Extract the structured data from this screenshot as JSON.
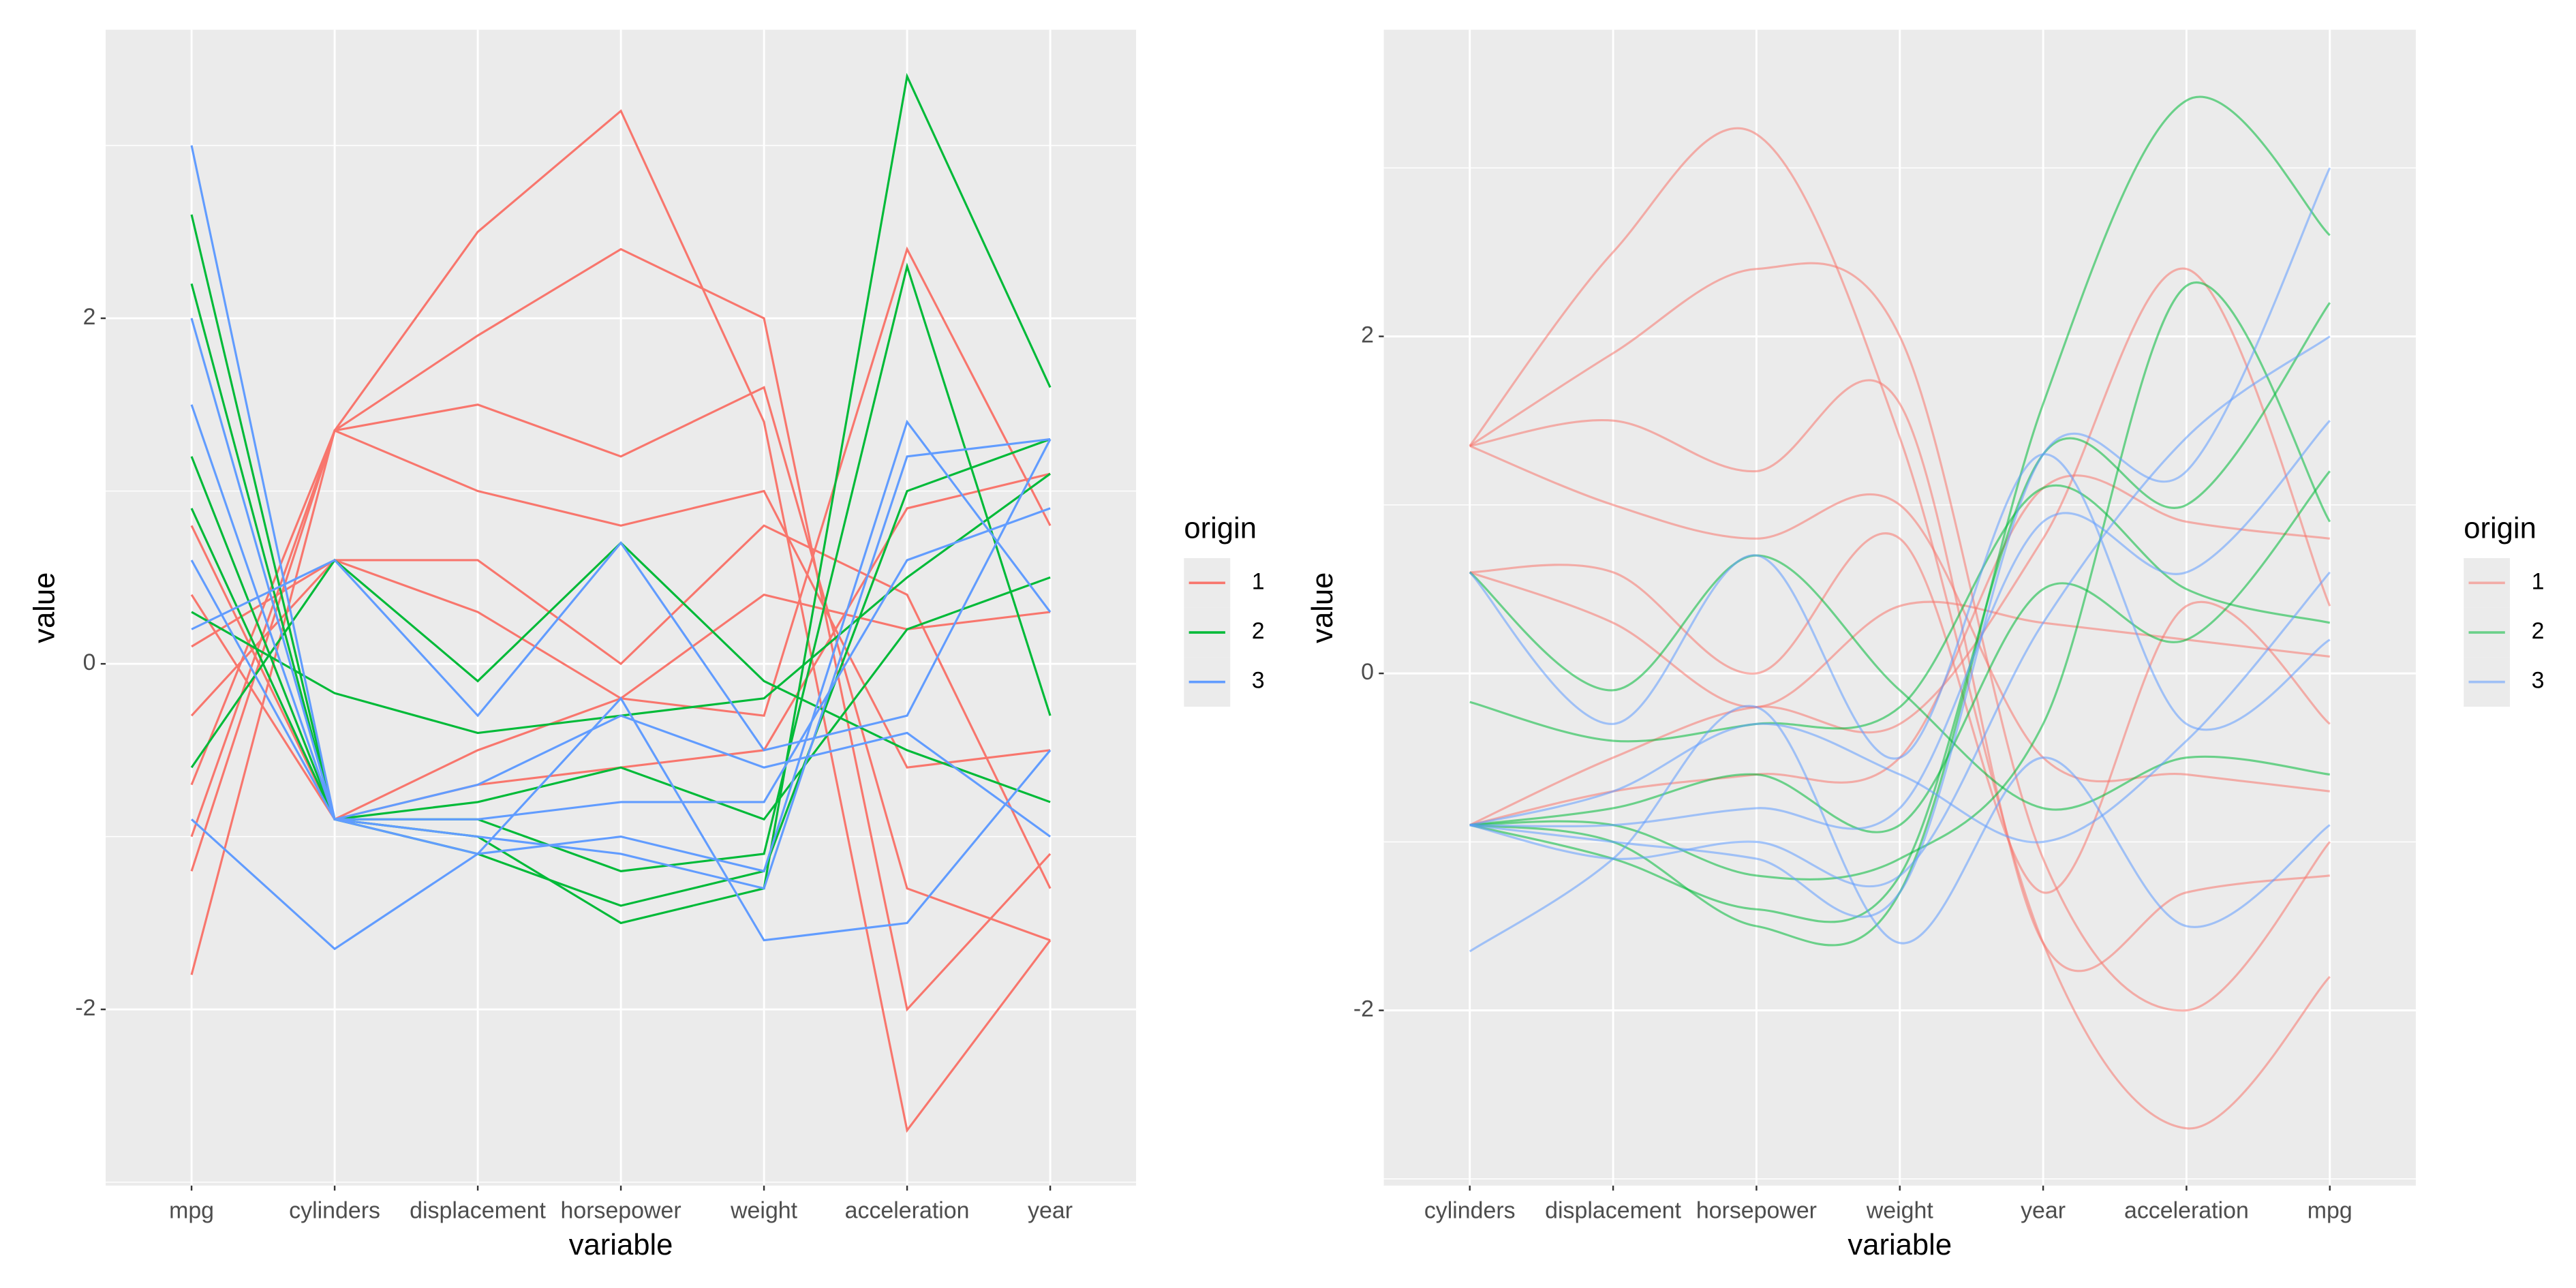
{
  "chart_data": [
    {
      "type": "parallel",
      "smooth": false,
      "alpha": 1,
      "x_label": "variable",
      "y_label": "value",
      "categories": [
        "mpg",
        "cylinders",
        "displacement",
        "horsepower",
        "weight",
        "acceleration",
        "year"
      ],
      "ylim": [
        -3.02,
        3.67
      ],
      "yticks": [
        -2,
        0,
        2
      ],
      "grid": true,
      "legend_title": "origin",
      "series": [
        {
          "name": "1",
          "color": "#F8766D",
          "lines": [
            [
              -1.2,
              1.35,
              1.5,
              1.2,
              1.6,
              -1.3,
              -1.6
            ],
            [
              -1.8,
              1.35,
              2.5,
              3.2,
              1.4,
              -2.7,
              -1.6
            ],
            [
              -0.7,
              1.35,
              1.0,
              0.8,
              1.0,
              -0.6,
              -0.5
            ],
            [
              0.1,
              0.6,
              0.3,
              -0.2,
              0.4,
              0.2,
              0.3
            ],
            [
              -0.3,
              0.6,
              0.6,
              0.0,
              0.8,
              0.4,
              -1.3
            ],
            [
              0.8,
              -0.9,
              -0.7,
              -0.6,
              -0.5,
              0.9,
              1.1
            ],
            [
              -1.0,
              1.35,
              1.9,
              2.4,
              2.0,
              -2.0,
              -1.1
            ],
            [
              0.4,
              -0.9,
              -0.5,
              -0.2,
              -0.3,
              2.4,
              0.8
            ]
          ]
        },
        {
          "name": "2",
          "color": "#00BA38",
          "lines": [
            [
              2.6,
              -0.9,
              -1.0,
              -1.5,
              -1.3,
              3.4,
              1.6
            ],
            [
              1.2,
              -0.9,
              -0.8,
              -0.6,
              -0.9,
              0.2,
              0.5
            ],
            [
              0.3,
              -0.17,
              -0.4,
              -0.3,
              -0.2,
              0.5,
              1.1
            ],
            [
              -0.6,
              0.6,
              -0.1,
              0.7,
              -0.1,
              -0.5,
              -0.8
            ],
            [
              0.9,
              -0.9,
              -0.9,
              -1.2,
              -1.1,
              2.3,
              -0.3
            ],
            [
              2.2,
              -0.9,
              -1.1,
              -1.4,
              -1.2,
              1.0,
              1.3
            ]
          ]
        },
        {
          "name": "3",
          "color": "#619CFF",
          "lines": [
            [
              3.0,
              -0.9,
              -1.0,
              -1.1,
              -1.3,
              1.2,
              1.3
            ],
            [
              -0.9,
              -1.65,
              -1.1,
              -0.2,
              -1.6,
              -1.5,
              -0.5
            ],
            [
              1.5,
              -0.9,
              -0.9,
              -0.8,
              -0.8,
              0.6,
              0.9
            ],
            [
              0.2,
              0.6,
              -0.3,
              0.7,
              -0.5,
              -0.3,
              1.3
            ],
            [
              2.0,
              -0.9,
              -1.1,
              -1.0,
              -1.2,
              1.4,
              0.3
            ],
            [
              0.6,
              -0.9,
              -0.7,
              -0.3,
              -0.6,
              -0.4,
              -1.0
            ]
          ]
        }
      ]
    },
    {
      "type": "parallel",
      "smooth": true,
      "alpha": 0.55,
      "x_label": "variable",
      "y_label": "value",
      "categories": [
        "cylinders",
        "displacement",
        "horsepower",
        "weight",
        "year",
        "acceleration",
        "mpg"
      ],
      "ylim": [
        -3.04,
        3.82
      ],
      "yticks": [
        -2,
        0,
        2
      ],
      "grid": true,
      "legend_title": "origin",
      "series": [
        {
          "name": "1",
          "color": "#F8766D",
          "lines": [
            [
              1.35,
              1.5,
              1.2,
              1.6,
              -1.6,
              -1.3,
              -1.2
            ],
            [
              1.35,
              2.5,
              3.2,
              1.4,
              -1.6,
              -2.7,
              -1.8
            ],
            [
              1.35,
              1.0,
              0.8,
              1.0,
              -0.5,
              -0.6,
              -0.7
            ],
            [
              0.6,
              0.3,
              -0.2,
              0.4,
              0.3,
              0.2,
              0.1
            ],
            [
              0.6,
              0.6,
              0.0,
              0.8,
              -1.3,
              0.4,
              -0.3
            ],
            [
              -0.9,
              -0.7,
              -0.6,
              -0.5,
              1.1,
              0.9,
              0.8
            ],
            [
              1.35,
              1.9,
              2.4,
              2.0,
              -1.1,
              -2.0,
              -1.0
            ],
            [
              -0.9,
              -0.5,
              -0.2,
              -0.3,
              0.8,
              2.4,
              0.4
            ]
          ]
        },
        {
          "name": "2",
          "color": "#00BA38",
          "lines": [
            [
              -0.9,
              -1.0,
              -1.5,
              -1.3,
              1.6,
              3.4,
              2.6
            ],
            [
              -0.9,
              -0.8,
              -0.6,
              -0.9,
              0.5,
              0.2,
              1.2
            ],
            [
              -0.17,
              -0.4,
              -0.3,
              -0.2,
              1.1,
              0.5,
              0.3
            ],
            [
              0.6,
              -0.1,
              0.7,
              -0.1,
              -0.8,
              -0.5,
              -0.6
            ],
            [
              -0.9,
              -0.9,
              -1.2,
              -1.1,
              -0.3,
              2.3,
              0.9
            ],
            [
              -0.9,
              -1.1,
              -1.4,
              -1.2,
              1.3,
              1.0,
              2.2
            ]
          ]
        },
        {
          "name": "3",
          "color": "#619CFF",
          "lines": [
            [
              -0.9,
              -1.0,
              -1.1,
              -1.3,
              1.3,
              1.2,
              3.0
            ],
            [
              -1.65,
              -1.1,
              -0.2,
              -1.6,
              -0.5,
              -1.5,
              -0.9
            ],
            [
              -0.9,
              -0.9,
              -0.8,
              -0.8,
              0.9,
              0.6,
              1.5
            ],
            [
              0.6,
              -0.3,
              0.7,
              -0.5,
              1.3,
              -0.3,
              0.2
            ],
            [
              -0.9,
              -1.1,
              -1.0,
              -1.2,
              0.3,
              1.4,
              2.0
            ],
            [
              -0.9,
              -0.7,
              -0.3,
              -0.6,
              -1.0,
              -0.4,
              0.6
            ]
          ]
        }
      ]
    }
  ]
}
